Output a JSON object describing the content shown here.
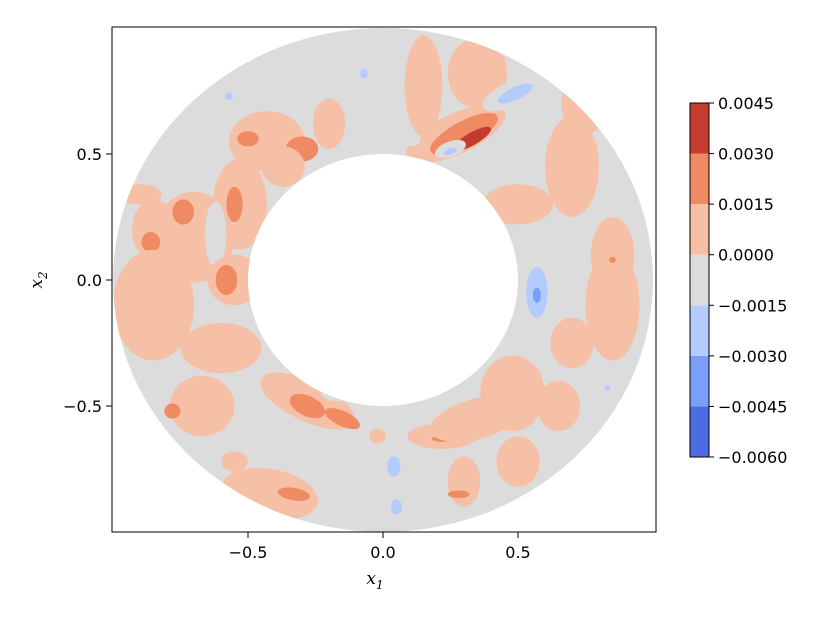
{
  "chart_data": {
    "type": "heatmap",
    "subtype": "filled-contour",
    "domain": "annulus",
    "inner_radius": 0.5,
    "outer_radius": 1.0,
    "xlim": [
      -1.0,
      1.0
    ],
    "ylim": [
      -1.0,
      1.0
    ],
    "x_ticks": [
      -0.5,
      0.0,
      0.5
    ],
    "y_ticks": [
      -0.5,
      0.0,
      0.5
    ],
    "x_tick_labels": [
      "−0.5",
      "0.0",
      "0.5"
    ],
    "y_tick_labels": [
      "−0.5",
      "0.0",
      "0.5"
    ],
    "xlabel": "x",
    "xlabel_sub": "1",
    "ylabel": "x",
    "ylabel_sub": "2",
    "colorbar": {
      "levels": [
        -0.006,
        -0.0045,
        -0.003,
        -0.0015,
        0.0,
        0.0015,
        0.003,
        0.0045
      ],
      "tick_labels": [
        "−0.0060",
        "−0.0045",
        "−0.0030",
        "−0.0015",
        "0.0000",
        "0.0015",
        "0.0030",
        "0.0045"
      ],
      "colors": [
        "#4a6ce0",
        "#7b9ff9",
        "#b4cbfe",
        "#dddcdc",
        "#f5c0a6",
        "#ef8a62",
        "#c43c2f"
      ],
      "colormap": "coolwarm",
      "position": "right"
    },
    "base_level_color": "#dddcdc",
    "regions": [
      {
        "x": 0.35,
        "y": 0.82,
        "rx": 0.11,
        "ry": 0.14,
        "rot": 0,
        "level": 0.0008
      },
      {
        "x": 0.15,
        "y": 0.77,
        "rx": 0.07,
        "ry": 0.2,
        "rot": 0,
        "level": 0.0008
      },
      {
        "x": 0.27,
        "y": 0.58,
        "rx": 0.2,
        "ry": 0.08,
        "rot": -25,
        "level": 0.0008
      },
      {
        "x": 0.3,
        "y": 0.58,
        "rx": 0.14,
        "ry": 0.05,
        "rot": -28,
        "level": 0.002
      },
      {
        "x": 0.33,
        "y": 0.56,
        "rx": 0.08,
        "ry": 0.025,
        "rot": -30,
        "level": 0.0038
      },
      {
        "x": 0.48,
        "y": 0.74,
        "rx": 0.12,
        "ry": 0.05,
        "rot": -25,
        "level": -0.0008
      },
      {
        "x": 0.49,
        "y": 0.74,
        "rx": 0.07,
        "ry": 0.025,
        "rot": -25,
        "level": -0.0022
      },
      {
        "x": -0.06,
        "y": 0.82,
        "rx": 0.04,
        "ry": 0.05,
        "rot": 0,
        "level": -0.0008
      },
      {
        "x": -0.07,
        "y": 0.82,
        "rx": 0.015,
        "ry": 0.02,
        "rot": 0,
        "level": -0.0022
      },
      {
        "x": -0.1,
        "y": 0.54,
        "rx": 0.13,
        "ry": 0.04,
        "rot": 8,
        "level": -0.0008
      },
      {
        "x": 0.1,
        "y": 0.56,
        "rx": 0.04,
        "ry": 0.03,
        "rot": 0,
        "level": -0.0008
      },
      {
        "x": 0.25,
        "y": 0.52,
        "rx": 0.06,
        "ry": 0.03,
        "rot": -20,
        "level": -0.0008
      },
      {
        "x": 0.25,
        "y": 0.51,
        "rx": 0.025,
        "ry": 0.012,
        "rot": -20,
        "level": -0.0022
      },
      {
        "x": -0.2,
        "y": 0.62,
        "rx": 0.06,
        "ry": 0.1,
        "rot": 0,
        "level": 0.0008
      },
      {
        "x": -0.57,
        "y": 0.73,
        "rx": 0.04,
        "ry": 0.04,
        "rot": 0,
        "level": -0.0008
      },
      {
        "x": -0.57,
        "y": 0.73,
        "rx": 0.015,
        "ry": 0.015,
        "rot": 0,
        "level": -0.0022
      },
      {
        "x": -0.43,
        "y": 0.55,
        "rx": 0.14,
        "ry": 0.12,
        "rot": 0,
        "level": 0.0008
      },
      {
        "x": -0.5,
        "y": 0.56,
        "rx": 0.04,
        "ry": 0.03,
        "rot": 0,
        "level": 0.002
      },
      {
        "x": -0.3,
        "y": 0.52,
        "rx": 0.06,
        "ry": 0.05,
        "rot": 0,
        "level": 0.002
      },
      {
        "x": -0.72,
        "y": 0.47,
        "rx": 0.04,
        "ry": 0.04,
        "rot": 0,
        "level": -0.0008
      },
      {
        "x": -0.7,
        "y": 0.17,
        "rx": 0.15,
        "ry": 0.18,
        "rot": 0,
        "level": 0.0008
      },
      {
        "x": -0.85,
        "y": 0.2,
        "rx": 0.08,
        "ry": 0.12,
        "rot": 0,
        "level": 0.0008
      },
      {
        "x": -0.74,
        "y": 0.27,
        "rx": 0.04,
        "ry": 0.05,
        "rot": 0,
        "level": 0.002
      },
      {
        "x": -0.86,
        "y": 0.15,
        "rx": 0.035,
        "ry": 0.04,
        "rot": 0,
        "level": 0.002
      },
      {
        "x": -0.53,
        "y": 0.3,
        "rx": 0.1,
        "ry": 0.18,
        "rot": 0,
        "level": 0.0008
      },
      {
        "x": -0.55,
        "y": 0.3,
        "rx": 0.03,
        "ry": 0.07,
        "rot": 0,
        "level": 0.002
      },
      {
        "x": -0.37,
        "y": 0.45,
        "rx": 0.08,
        "ry": 0.08,
        "rot": 0,
        "level": 0.0008
      },
      {
        "x": -0.39,
        "y": 0.2,
        "rx": 0.05,
        "ry": 0.13,
        "rot": 0,
        "level": -0.0008
      },
      {
        "x": -0.39,
        "y": 0.2,
        "rx": 0.015,
        "ry": 0.06,
        "rot": 0,
        "level": -0.0022
      },
      {
        "x": -0.62,
        "y": 0.18,
        "rx": 0.04,
        "ry": 0.13,
        "rot": 0,
        "level": -0.0008
      },
      {
        "x": -0.55,
        "y": 0.0,
        "rx": 0.1,
        "ry": 0.1,
        "rot": 0,
        "level": 0.0008
      },
      {
        "x": -0.58,
        "y": 0.0,
        "rx": 0.04,
        "ry": 0.06,
        "rot": 0,
        "level": 0.002
      },
      {
        "x": -0.85,
        "y": -0.1,
        "rx": 0.15,
        "ry": 0.22,
        "rot": 0,
        "level": 0.0008
      },
      {
        "x": -0.6,
        "y": -0.27,
        "rx": 0.15,
        "ry": 0.1,
        "rot": 0,
        "level": 0.0008
      },
      {
        "x": -0.67,
        "y": -0.5,
        "rx": 0.12,
        "ry": 0.12,
        "rot": 0,
        "level": 0.0008
      },
      {
        "x": -0.78,
        "y": -0.52,
        "rx": 0.03,
        "ry": 0.03,
        "rot": 0,
        "level": 0.002
      },
      {
        "x": -0.55,
        "y": -0.72,
        "rx": 0.05,
        "ry": 0.04,
        "rot": 0,
        "level": 0.0008
      },
      {
        "x": -0.38,
        "y": -0.2,
        "rx": 0.03,
        "ry": 0.04,
        "rot": 0,
        "level": -0.0008
      },
      {
        "x": -0.28,
        "y": -0.48,
        "rx": 0.19,
        "ry": 0.08,
        "rot": 25,
        "level": 0.0008
      },
      {
        "x": -0.28,
        "y": -0.5,
        "rx": 0.07,
        "ry": 0.04,
        "rot": 25,
        "level": 0.002
      },
      {
        "x": -0.15,
        "y": -0.55,
        "rx": 0.07,
        "ry": 0.03,
        "rot": 25,
        "level": 0.002
      },
      {
        "x": -0.18,
        "y": -0.46,
        "rx": 0.05,
        "ry": 0.02,
        "rot": 10,
        "level": -0.0008
      },
      {
        "x": -0.29,
        "y": -0.37,
        "rx": 0.04,
        "ry": 0.02,
        "rot": 0,
        "level": -0.0008
      },
      {
        "x": -0.26,
        "y": -0.67,
        "rx": 0.15,
        "ry": 0.05,
        "rot": 20,
        "level": -0.0008
      },
      {
        "x": -0.42,
        "y": -0.85,
        "rx": 0.18,
        "ry": 0.1,
        "rot": 10,
        "level": 0.0008
      },
      {
        "x": -0.33,
        "y": -0.85,
        "rx": 0.06,
        "ry": 0.025,
        "rot": 10,
        "level": 0.002
      },
      {
        "x": -0.02,
        "y": -0.62,
        "rx": 0.03,
        "ry": 0.03,
        "rot": 0,
        "level": 0.0008
      },
      {
        "x": 0.05,
        "y": -0.77,
        "rx": 0.06,
        "ry": 0.12,
        "rot": 0,
        "level": -0.0008
      },
      {
        "x": 0.04,
        "y": -0.74,
        "rx": 0.025,
        "ry": 0.04,
        "rot": 0,
        "level": -0.0022
      },
      {
        "x": 0.05,
        "y": -0.9,
        "rx": 0.02,
        "ry": 0.03,
        "rot": 0,
        "level": -0.0022
      },
      {
        "x": -0.1,
        "y": -0.93,
        "rx": 0.02,
        "ry": 0.015,
        "rot": 0,
        "level": -0.0008
      },
      {
        "x": 0.22,
        "y": -0.62,
        "rx": 0.13,
        "ry": 0.05,
        "rot": 0,
        "level": 0.0008
      },
      {
        "x": 0.22,
        "y": -0.63,
        "rx": 0.04,
        "ry": 0.012,
        "rot": 0,
        "level": 0.002
      },
      {
        "x": 0.35,
        "y": -0.55,
        "rx": 0.18,
        "ry": 0.08,
        "rot": -15,
        "level": 0.0008
      },
      {
        "x": 0.3,
        "y": -0.8,
        "rx": 0.06,
        "ry": 0.1,
        "rot": 0,
        "level": 0.0008
      },
      {
        "x": 0.28,
        "y": -0.85,
        "rx": 0.04,
        "ry": 0.015,
        "rot": 0,
        "level": 0.002
      },
      {
        "x": 0.5,
        "y": -0.45,
        "rx": 0.04,
        "ry": 0.08,
        "rot": 0,
        "level": 0.002
      },
      {
        "x": 0.48,
        "y": -0.45,
        "rx": 0.12,
        "ry": 0.15,
        "rot": 0,
        "level": 0.0008
      },
      {
        "x": 0.65,
        "y": -0.5,
        "rx": 0.08,
        "ry": 0.1,
        "rot": 0,
        "level": 0.0008
      },
      {
        "x": 0.5,
        "y": -0.72,
        "rx": 0.08,
        "ry": 0.1,
        "rot": 0,
        "level": 0.0008
      },
      {
        "x": 0.58,
        "y": -0.1,
        "rx": 0.08,
        "ry": 0.18,
        "rot": 0,
        "level": -0.0008
      },
      {
        "x": 0.57,
        "y": -0.05,
        "rx": 0.04,
        "ry": 0.1,
        "rot": 0,
        "level": -0.0022
      },
      {
        "x": 0.57,
        "y": -0.06,
        "rx": 0.015,
        "ry": 0.03,
        "rot": 0,
        "level": -0.0038
      },
      {
        "x": 0.85,
        "y": -0.1,
        "rx": 0.1,
        "ry": 0.22,
        "rot": 0,
        "level": 0.0008
      },
      {
        "x": 0.7,
        "y": -0.25,
        "rx": 0.08,
        "ry": 0.1,
        "rot": 0,
        "level": 0.0008
      },
      {
        "x": 0.83,
        "y": -0.43,
        "rx": 0.04,
        "ry": 0.04,
        "rot": 0,
        "level": -0.0008
      },
      {
        "x": 0.83,
        "y": -0.43,
        "rx": 0.012,
        "ry": 0.012,
        "rot": 0,
        "level": -0.0022
      },
      {
        "x": 0.85,
        "y": 0.1,
        "rx": 0.08,
        "ry": 0.15,
        "rot": 0,
        "level": 0.0008
      },
      {
        "x": 0.85,
        "y": 0.08,
        "rx": 0.012,
        "ry": 0.012,
        "rot": 0,
        "level": 0.002
      },
      {
        "x": 0.7,
        "y": 0.45,
        "rx": 0.1,
        "ry": 0.2,
        "rot": 0,
        "level": 0.0008
      },
      {
        "x": 0.5,
        "y": 0.3,
        "rx": 0.13,
        "ry": 0.08,
        "rot": 0,
        "level": 0.0008
      },
      {
        "x": 0.56,
        "y": 0.5,
        "rx": 0.02,
        "ry": 0.015,
        "rot": 0,
        "level": -0.0008
      },
      {
        "x": 0.75,
        "y": 0.7,
        "rx": 0.09,
        "ry": 0.12,
        "rot": 0,
        "level": 0.0008
      },
      {
        "x": 0.72,
        "y": 0.1,
        "rx": 0.04,
        "ry": 0.05,
        "rot": 0,
        "level": -0.0008
      },
      {
        "x": -0.9,
        "y": 0.34,
        "rx": 0.08,
        "ry": 0.04,
        "rot": 0,
        "level": 0.0008
      }
    ]
  }
}
